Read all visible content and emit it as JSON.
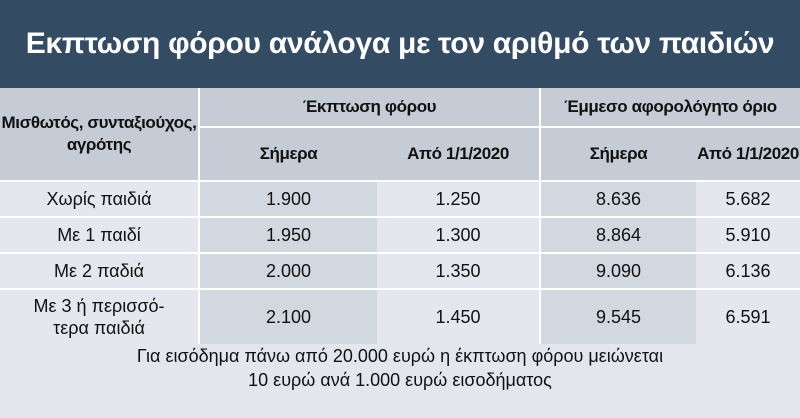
{
  "title": "Εκπτωση φόρου ανάλογα με τον αριθμό των παιδιών",
  "table": {
    "row_header": "Μισθωτός, συνταξιούχος, αγρότης",
    "groups": [
      "Έκπτωση φόρου",
      "Έμμεσο αφορολόγητο όριο"
    ],
    "subheaders": [
      "Σήμερα",
      "Από 1/1/2020",
      "Σήμερα",
      "Από 1/1/2020"
    ],
    "rows": [
      {
        "label": "Χωρίς παιδιά",
        "values": [
          "1.900",
          "1.250",
          "8.636",
          "5.682"
        ]
      },
      {
        "label": "Με 1 παιδί",
        "values": [
          "1.950",
          "1.300",
          "8.864",
          "5.910"
        ]
      },
      {
        "label": "Με 2 παδιά",
        "values": [
          "2.000",
          "1.350",
          "9.090",
          "6.136"
        ]
      },
      {
        "label": "Με 3 ή περισσό-τερα παιδιά",
        "values": [
          "2.100",
          "1.450",
          "9.545",
          "6.591"
        ]
      }
    ]
  },
  "note": {
    "line1": "Για εισόδημα πάνω από 20.000 ευρώ η έκπτωση φόρου μειώνεται",
    "line2": "10 ευρώ ανά 1.000 ευρώ εισοδήματος"
  }
}
